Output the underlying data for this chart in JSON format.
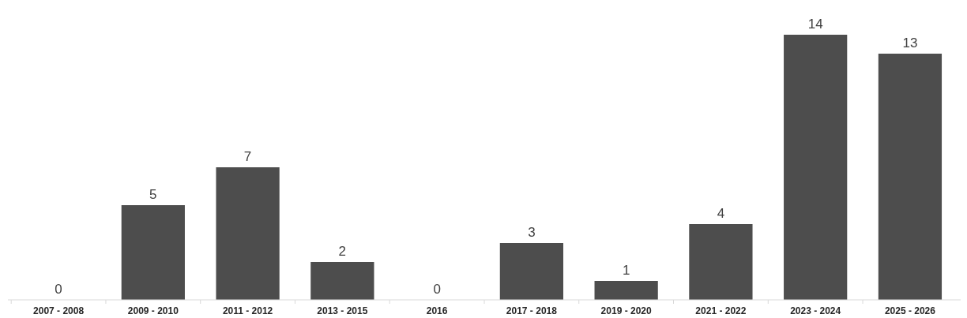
{
  "chart_data": {
    "type": "bar",
    "categories": [
      "2007 - 2008",
      "2009 - 2010",
      "2011 - 2012",
      "2013 - 2015",
      "2016",
      "2017 - 2018",
      "2019 - 2020",
      "2021 - 2022",
      "2023 - 2024",
      "2025 - 2026"
    ],
    "values": [
      0,
      5,
      7,
      2,
      0,
      3,
      1,
      4,
      14,
      13
    ],
    "color": "#4d4d4d",
    "data_labels": true
  }
}
